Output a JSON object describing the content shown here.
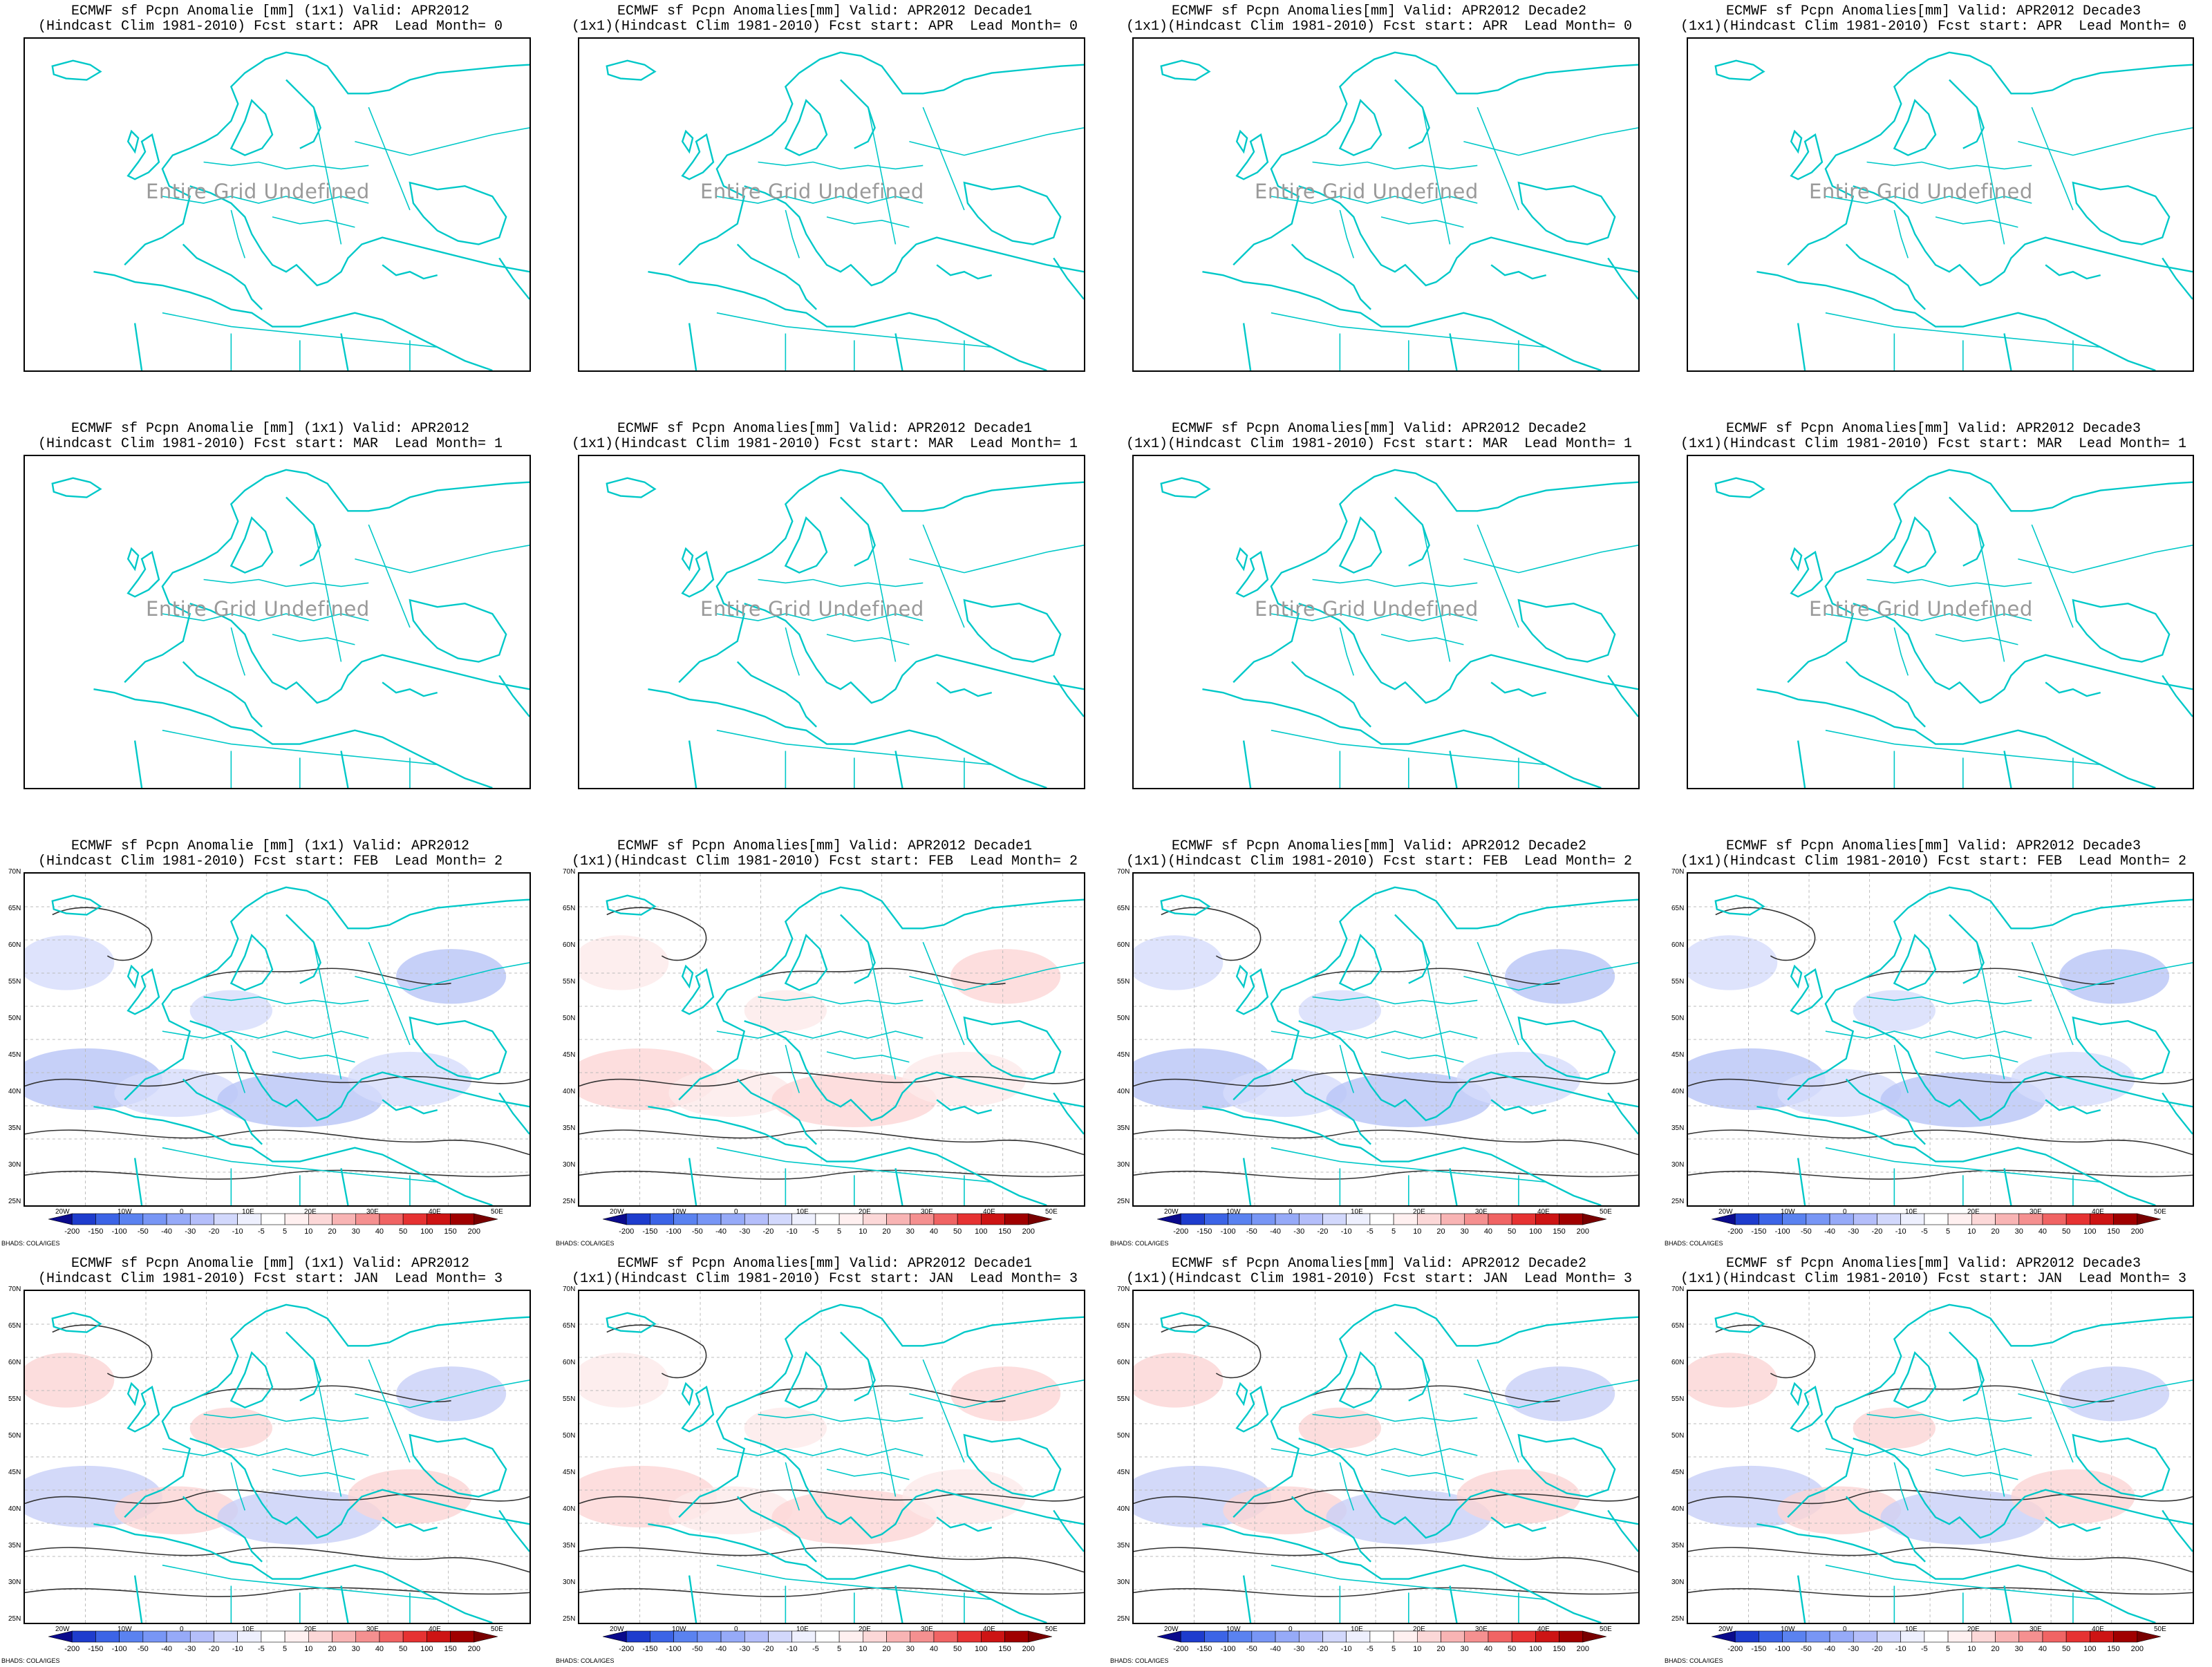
{
  "common": {
    "undefined_text": "Entire Grid Undefined",
    "credit": "BHADS: COLA/IGES",
    "colorbar_labels": [
      "-200",
      "-150",
      "-100",
      "-50",
      "-40",
      "-30",
      "-20",
      "-10",
      "-5",
      "5",
      "10",
      "20",
      "30",
      "40",
      "50",
      "100",
      "150",
      "200"
    ],
    "colorbar_colors": [
      "#0a0a8c",
      "#1e3ccd",
      "#3c64e6",
      "#5a82f0",
      "#7896f5",
      "#96aaf8",
      "#b4befa",
      "#d2d8fc",
      "#eef0fe",
      "#ffffff",
      "#fff0f0",
      "#fcd8d8",
      "#f8b4b4",
      "#f59090",
      "#f06464",
      "#e63232",
      "#cd1414",
      "#a00000",
      "#780000"
    ],
    "lat_labels": [
      "70N",
      "65N",
      "60N",
      "55N",
      "50N",
      "45N",
      "40N",
      "35N",
      "30N",
      "25N"
    ],
    "lon_labels": [
      "20W",
      "10W",
      "0",
      "10E",
      "20E",
      "30E",
      "40E",
      "50E"
    ],
    "coast_color": "#00c8c8"
  },
  "panels": [
    {
      "line1": "ECMWF sf Pcpn Anomalie [mm] (1x1) Valid: APR2012",
      "line2": "(Hindcast Clim 1981-2010) Fcst start: APR  Lead Month= 0",
      "undefined": true
    },
    {
      "line1": "ECMWF sf Pcpn Anomalies[mm] Valid: APR2012 Decade1",
      "line2": "(1x1)(Hindcast Clim 1981-2010) Fcst start: APR  Lead Month= 0",
      "undefined": true
    },
    {
      "line1": "ECMWF sf Pcpn Anomalies[mm] Valid: APR2012 Decade2",
      "line2": "(1x1)(Hindcast Clim 1981-2010) Fcst start: APR  Lead Month= 0",
      "undefined": true
    },
    {
      "line1": "ECMWF sf Pcpn Anomalies[mm] Valid: APR2012 Decade3",
      "line2": "(1x1)(Hindcast Clim 1981-2010) Fcst start: APR  Lead Month= 0",
      "undefined": true
    },
    {
      "line1": "ECMWF sf Pcpn Anomalie [mm] (1x1) Valid: APR2012",
      "line2": "(Hindcast Clim 1981-2010) Fcst start: MAR  Lead Month= 1",
      "undefined": true
    },
    {
      "line1": "ECMWF sf Pcpn Anomalies[mm] Valid: APR2012 Decade1",
      "line2": "(1x1)(Hindcast Clim 1981-2010) Fcst start: MAR  Lead Month= 1",
      "undefined": true
    },
    {
      "line1": "ECMWF sf Pcpn Anomalies[mm] Valid: APR2012 Decade2",
      "line2": "(1x1)(Hindcast Clim 1981-2010) Fcst start: MAR  Lead Month= 1",
      "undefined": true
    },
    {
      "line1": "ECMWF sf Pcpn Anomalies[mm] Valid: APR2012 Decade3",
      "line2": "(1x1)(Hindcast Clim 1981-2010) Fcst start: MAR  Lead Month= 1",
      "undefined": true
    },
    {
      "line1": "ECMWF sf Pcpn Anomalie [mm] (1x1) Valid: APR2012",
      "line2": "(Hindcast Clim 1981-2010) Fcst start: FEB  Lead Month= 2",
      "undefined": false,
      "tint": "blue"
    },
    {
      "line1": "ECMWF sf Pcpn Anomalies[mm] Valid: APR2012 Decade1",
      "line2": "(1x1)(Hindcast Clim 1981-2010) Fcst start: FEB  Lead Month= 2",
      "undefined": false,
      "tint": "red"
    },
    {
      "line1": "ECMWF sf Pcpn Anomalies[mm] Valid: APR2012 Decade2",
      "line2": "(1x1)(Hindcast Clim 1981-2010) Fcst start: FEB  Lead Month= 2",
      "undefined": false,
      "tint": "blue"
    },
    {
      "line1": "ECMWF sf Pcpn Anomalies[mm] Valid: APR2012 Decade3",
      "line2": "(1x1)(Hindcast Clim 1981-2010) Fcst start: FEB  Lead Month= 2",
      "undefined": false,
      "tint": "blue"
    },
    {
      "line1": "ECMWF sf Pcpn Anomalie [mm] (1x1) Valid: APR2012",
      "line2": "(Hindcast Clim 1981-2010) Fcst start: JAN  Lead Month= 3",
      "undefined": false,
      "tint": "mixed"
    },
    {
      "line1": "ECMWF sf Pcpn Anomalies[mm] Valid: APR2012 Decade1",
      "line2": "(1x1)(Hindcast Clim 1981-2010) Fcst start: JAN  Lead Month= 3",
      "undefined": false,
      "tint": "red"
    },
    {
      "line1": "ECMWF sf Pcpn Anomalies[mm] Valid: APR2012 Decade2",
      "line2": "(1x1)(Hindcast Clim 1981-2010) Fcst start: JAN  Lead Month= 3",
      "undefined": false,
      "tint": "mixed"
    },
    {
      "line1": "ECMWF sf Pcpn Anomalies[mm] Valid: APR2012 Decade3",
      "line2": "(1x1)(Hindcast Clim 1981-2010) Fcst start: JAN  Lead Month= 3",
      "undefined": false,
      "tint": "mixed"
    }
  ]
}
